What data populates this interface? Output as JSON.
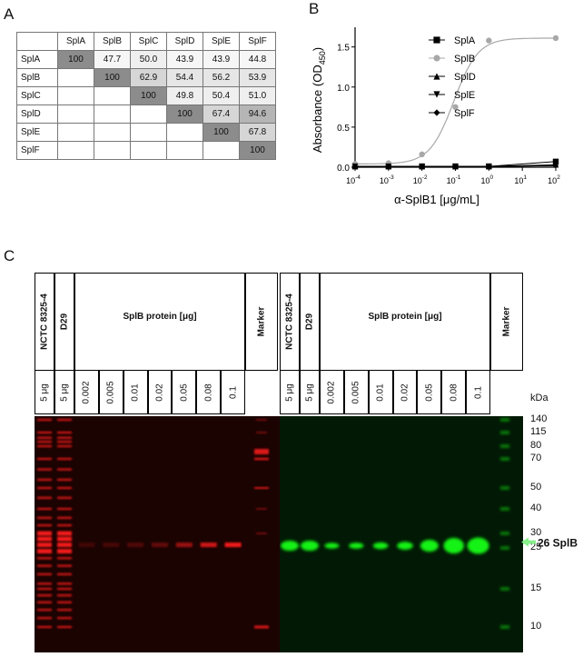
{
  "panels": {
    "a": "A",
    "b": "B",
    "c": "C"
  },
  "panel_a": {
    "columns": [
      "SplA",
      "SplB",
      "SplC",
      "SplD",
      "SplE",
      "SplF"
    ],
    "rows": [
      {
        "label": "SplA",
        "values": [
          "100",
          "47.7",
          "50.0",
          "43.9",
          "43.9",
          "44.8"
        ]
      },
      {
        "label": "SplB",
        "values": [
          "",
          "100",
          "62.9",
          "54.4",
          "56.2",
          "53.9"
        ]
      },
      {
        "label": "SplC",
        "values": [
          "",
          "",
          "100",
          "49.8",
          "50.4",
          "51.0"
        ]
      },
      {
        "label": "SplD",
        "values": [
          "",
          "",
          "",
          "100",
          "67.4",
          "94.6"
        ]
      },
      {
        "label": "SplE",
        "values": [
          "",
          "",
          "",
          "",
          "100",
          "67.8"
        ]
      },
      {
        "label": "SplF",
        "values": [
          "",
          "",
          "",
          "",
          "",
          "100"
        ]
      }
    ]
  },
  "chart_data": {
    "type": "line",
    "ylabel": "Absorbance (OD450)",
    "ylabel_main": "Absorbance (OD",
    "ylabel_sub": "450",
    "ylabel_end": ")",
    "xlabel": "α-SplB1 [μg/mL]",
    "x_scale": "log",
    "xlim": [
      0.0001,
      100
    ],
    "ylim": [
      0,
      1.7
    ],
    "x_ticks": [
      {
        "base": "10",
        "exp": "-4",
        "value": 0.0001
      },
      {
        "base": "10",
        "exp": "-3",
        "value": 0.001
      },
      {
        "base": "10",
        "exp": "-2",
        "value": 0.01
      },
      {
        "base": "10",
        "exp": "-1",
        "value": 0.1
      },
      {
        "base": "10",
        "exp": "0",
        "value": 1
      },
      {
        "base": "10",
        "exp": "1",
        "value": 10
      },
      {
        "base": "10",
        "exp": "2",
        "value": 100
      }
    ],
    "y_ticks": [
      {
        "label": "0.0",
        "value": 0.0
      },
      {
        "label": "0.5",
        "value": 0.5
      },
      {
        "label": "1.0",
        "value": 1.0
      },
      {
        "label": "1.5",
        "value": 1.5
      }
    ],
    "x": [
      0.0001,
      0.001,
      0.01,
      0.1,
      1,
      100
    ],
    "series": [
      {
        "name": "SplA",
        "marker": "square",
        "color": "#000000",
        "values": [
          0.01,
          0.01,
          0.01,
          0.01,
          0.01,
          0.07
        ]
      },
      {
        "name": "SplB",
        "marker": "circle",
        "color": "#a8a8a8",
        "values": [
          0.04,
          0.05,
          0.16,
          0.75,
          1.58,
          1.61
        ]
      },
      {
        "name": "SplD",
        "marker": "triangle-up",
        "color": "#000000",
        "values": [
          0.01,
          0.01,
          0.01,
          0.01,
          0.01,
          0.03
        ]
      },
      {
        "name": "SplE",
        "marker": "triangle-down",
        "color": "#000000",
        "values": [
          0.01,
          0.01,
          0.01,
          0.01,
          0.01,
          0.02
        ]
      },
      {
        "name": "SplF",
        "marker": "diamond",
        "color": "#000000",
        "values": [
          0.01,
          0.01,
          0.01,
          0.01,
          0.01,
          0.02
        ]
      }
    ],
    "fit_curves": [
      {
        "series": "SplB",
        "bottom": 0.04,
        "top": 1.61,
        "ec50": 0.09,
        "hill": 1.2
      }
    ],
    "legend_position": "top-right"
  },
  "panel_c": {
    "groups": [
      {
        "strain1": "NCTC 8325-4",
        "strain2": "D29",
        "protein_label": "SplB protein [μg]",
        "marker": "Marker"
      },
      {
        "strain1": "NCTC 8325-4",
        "strain2": "D29",
        "protein_label": "SplB protein [μg]",
        "marker": "Marker"
      }
    ],
    "strain_amounts": [
      "5 μg",
      "5 μg"
    ],
    "protein_amounts": [
      "0.002",
      "0.005",
      "0.01",
      "0.02",
      "0.05",
      "0.08",
      "0.1"
    ],
    "kda_unit": "kDa",
    "kda_ladder": [
      {
        "label": "140",
        "kda": 140
      },
      {
        "label": "115",
        "kda": 115
      },
      {
        "label": "80",
        "kda": 80
      },
      {
        "label": "70",
        "kda": 70
      },
      {
        "label": "50",
        "kda": 50
      },
      {
        "label": "40",
        "kda": 40
      },
      {
        "label": "30",
        "kda": 30
      },
      {
        "label": "25",
        "kda": 25
      },
      {
        "label": "15",
        "kda": 15
      },
      {
        "label": "10",
        "kda": 10
      }
    ],
    "band_callout": "26 SplB",
    "band_kda": 26,
    "colors": {
      "red_channel": "#ff1a1a",
      "green_channel": "#19ff19",
      "arrow": "#86f08a"
    }
  }
}
